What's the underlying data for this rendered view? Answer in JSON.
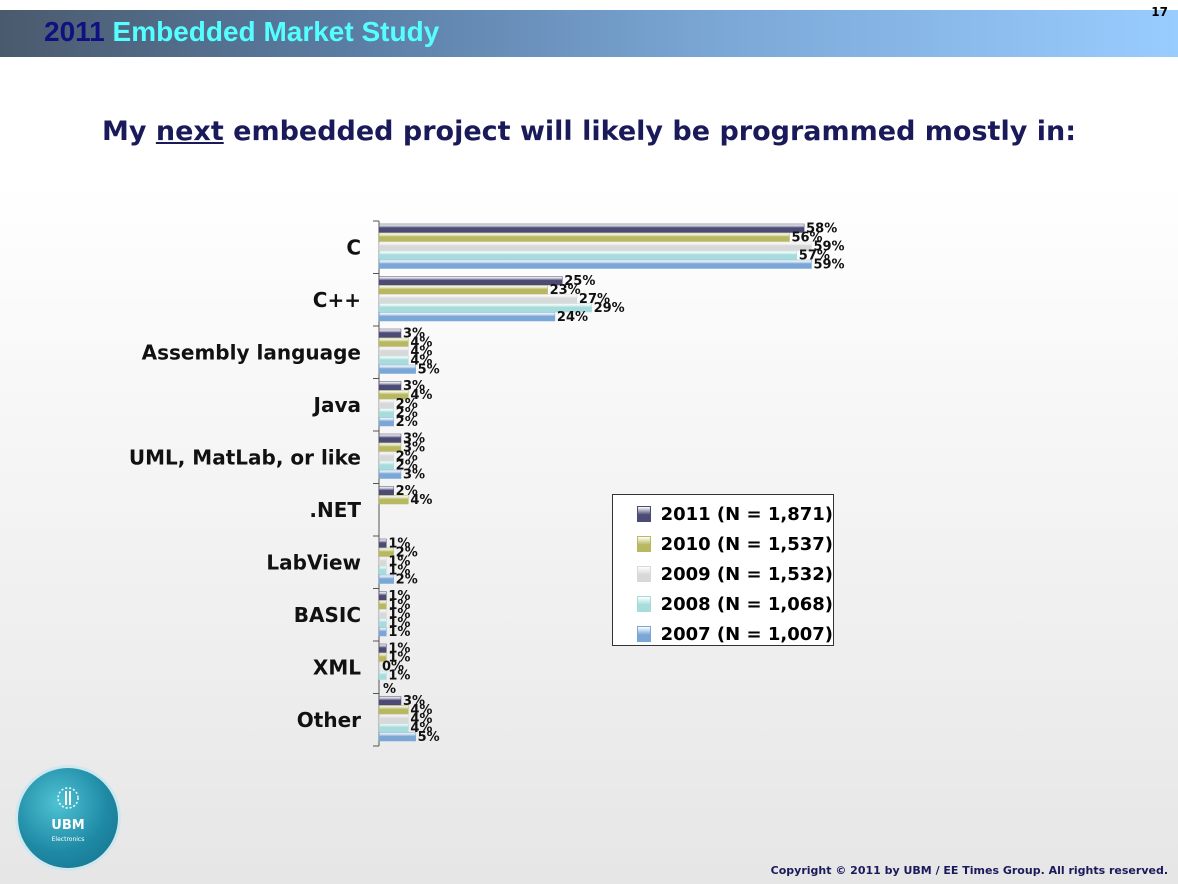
{
  "header": {
    "title_year": "2011",
    "title_rest": "Embedded Market Study",
    "page_number": "17"
  },
  "question": {
    "prefix": "My ",
    "emphasis": "next",
    "suffix": " embedded project will likely be programmed mostly in:"
  },
  "chart_data": {
    "type": "bar",
    "orientation": "horizontal",
    "title": "My next embedded project will likely be programmed mostly in:",
    "categories": [
      "C",
      "C++",
      "Assembly language",
      "Java",
      "UML, MatLab, or like",
      ".NET",
      "LabView",
      "BASIC",
      "XML",
      "Other"
    ],
    "series": [
      {
        "name": "2011 (N = 1,871)",
        "color": "#4b4b75",
        "values": [
          58,
          25,
          3,
          3,
          3,
          2,
          1,
          1,
          1,
          3
        ]
      },
      {
        "name": "2010 (N = 1,537)",
        "color": "#b8b860",
        "values": [
          56,
          23,
          4,
          4,
          3,
          4,
          2,
          1,
          1,
          4
        ]
      },
      {
        "name": "2009 (N = 1,532)",
        "color": "#d8d8d8",
        "values": [
          59,
          27,
          4,
          2,
          2,
          null,
          1,
          1,
          0,
          4
        ]
      },
      {
        "name": "2008 (N = 1,068)",
        "color": "#a6dcdc",
        "values": [
          57,
          29,
          4,
          2,
          2,
          null,
          1,
          1,
          1,
          4
        ]
      },
      {
        "name": "2007 (N = 1,007)",
        "color": "#7ba7d6",
        "values": [
          59,
          24,
          5,
          2,
          3,
          null,
          2,
          1,
          null,
          5
        ]
      }
    ],
    "value_suffix": "%",
    "extra_labels": {
      "XML": "%"
    },
    "xlim": [
      0,
      65
    ],
    "xlabel": "",
    "ylabel": "",
    "legend_position": "right"
  },
  "logo": {
    "name": "UBM",
    "sub": "Electronics"
  },
  "copyright": "Copyright © 2011 by UBM / EE Times Group. All rights reserved."
}
